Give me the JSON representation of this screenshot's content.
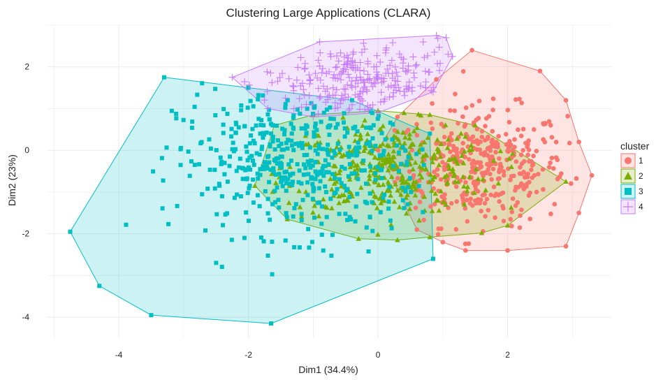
{
  "chart_data": {
    "type": "scatter",
    "title": "Clustering Large Applications (CLARA)",
    "xlabel": "Dim1 (34.4%)",
    "ylabel": "Dim2 (23%)",
    "xlim": [
      -5.1,
      3.6
    ],
    "ylim": [
      -4.5,
      3.0
    ],
    "x_ticks": [
      -4,
      -2,
      0,
      2
    ],
    "y_ticks": [
      -4,
      -2,
      0,
      2
    ],
    "grid": true,
    "legend": {
      "title": "cluster",
      "position": "right"
    },
    "series": [
      {
        "name": "1",
        "color": "#F8766D",
        "marker": "circle",
        "hull": [
          [
            1.45,
            2.4
          ],
          [
            2.5,
            1.9
          ],
          [
            2.9,
            1.2
          ],
          [
            3.1,
            0.2
          ],
          [
            3.3,
            -0.6
          ],
          [
            3.1,
            -1.5
          ],
          [
            2.9,
            -2.3
          ],
          [
            2.0,
            -2.4
          ],
          [
            1.35,
            -2.4
          ],
          [
            1.0,
            -2.2
          ],
          [
            0.6,
            -1.9
          ],
          [
            0.0,
            0.0
          ],
          [
            0.3,
            0.8
          ],
          [
            0.9,
            1.7
          ]
        ],
        "center": [
          1.6,
          -0.4
        ],
        "spread": [
          0.65,
          0.7
        ],
        "count": 380
      },
      {
        "name": "2",
        "color": "#7CAE00",
        "marker": "triangle",
        "hull": [
          [
            -1.9,
            -0.85
          ],
          [
            -1.6,
            0.6
          ],
          [
            -1.0,
            0.85
          ],
          [
            0.0,
            0.95
          ],
          [
            0.8,
            0.85
          ],
          [
            1.5,
            0.6
          ],
          [
            2.9,
            -0.75
          ],
          [
            2.0,
            -1.8
          ],
          [
            1.6,
            -1.98
          ],
          [
            0.8,
            -2.08
          ],
          [
            0.3,
            -2.15
          ],
          [
            -0.3,
            -2.12
          ],
          [
            -1.4,
            -1.65
          ]
        ],
        "center": [
          0.15,
          -0.45
        ],
        "spread": [
          0.8,
          0.55
        ],
        "count": 360
      },
      {
        "name": "3",
        "color": "#00BFC4",
        "marker": "square",
        "hull": [
          [
            -3.3,
            1.75
          ],
          [
            -2.0,
            1.5
          ],
          [
            -0.4,
            1.2
          ],
          [
            0.8,
            0.4
          ],
          [
            0.85,
            -2.6
          ],
          [
            -1.65,
            -4.15
          ],
          [
            -3.5,
            -3.95
          ],
          [
            -4.3,
            -3.25
          ],
          [
            -4.75,
            -1.95
          ]
        ],
        "center": [
          -1.2,
          -0.3
        ],
        "spread": [
          0.95,
          0.85
        ],
        "count": 480
      },
      {
        "name": "4",
        "color": "#C77CFF",
        "marker": "plus",
        "hull": [
          [
            -2.25,
            1.75
          ],
          [
            -0.9,
            2.6
          ],
          [
            0.9,
            2.75
          ],
          [
            1.05,
            2.7
          ],
          [
            1.15,
            2.25
          ],
          [
            0.85,
            1.4
          ],
          [
            0.0,
            0.9
          ],
          [
            -1.0,
            0.8
          ],
          [
            -1.7,
            1.0
          ]
        ],
        "center": [
          -0.3,
          1.65
        ],
        "spread": [
          0.75,
          0.45
        ],
        "count": 250
      }
    ]
  }
}
